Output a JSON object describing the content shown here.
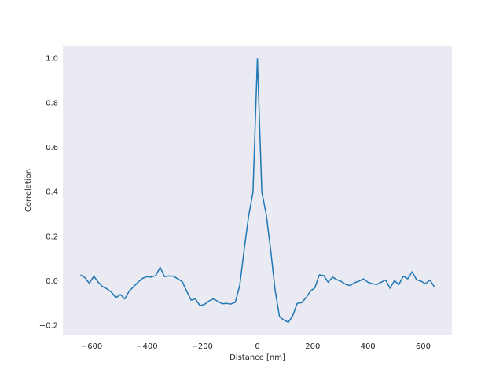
{
  "chart_data": {
    "type": "line",
    "xlabel": "Distance [nm]",
    "ylabel": "Correlation",
    "x": [
      -640,
      -624,
      -608,
      -592,
      -576,
      -560,
      -544,
      -528,
      -512,
      -496,
      -480,
      -464,
      -448,
      -432,
      -416,
      -400,
      -384,
      -368,
      -352,
      -336,
      -320,
      -304,
      -288,
      -272,
      -256,
      -240,
      -224,
      -208,
      -192,
      -176,
      -160,
      -144,
      -128,
      -112,
      -96,
      -80,
      -64,
      -48,
      -32,
      -16,
      0,
      16,
      32,
      48,
      64,
      80,
      96,
      112,
      128,
      144,
      160,
      176,
      192,
      208,
      224,
      240,
      256,
      272,
      288,
      304,
      320,
      336,
      352,
      368,
      384,
      400,
      416,
      432,
      448,
      464,
      480,
      496,
      512,
      528,
      544,
      560,
      576,
      592,
      608,
      624,
      640
    ],
    "values": [
      0.028,
      0.015,
      -0.01,
      0.022,
      -0.005,
      -0.025,
      -0.035,
      -0.05,
      -0.075,
      -0.06,
      -0.08,
      -0.045,
      -0.025,
      -0.005,
      0.012,
      0.02,
      0.018,
      0.025,
      0.062,
      0.02,
      0.023,
      0.022,
      0.01,
      -0.002,
      -0.045,
      -0.085,
      -0.08,
      -0.11,
      -0.105,
      -0.09,
      -0.08,
      -0.09,
      -0.102,
      -0.1,
      -0.103,
      -0.095,
      -0.02,
      0.14,
      0.29,
      0.4,
      1.0,
      0.4,
      0.3,
      0.14,
      -0.04,
      -0.16,
      -0.175,
      -0.185,
      -0.155,
      -0.1,
      -0.097,
      -0.075,
      -0.045,
      -0.03,
      0.028,
      0.025,
      -0.005,
      0.018,
      0.006,
      -0.002,
      -0.015,
      -0.02,
      -0.007,
      0,
      0.01,
      -0.005,
      -0.012,
      -0.015,
      -0.005,
      0.005,
      -0.032,
      0.002,
      -0.015,
      0.022,
      0.01,
      0.042,
      0.006,
      0,
      -0.012,
      0.005,
      -0.025
    ],
    "color": "#1f77b4",
    "background": "#eaeaf2",
    "grid": false,
    "xlim": [
      -704,
      704
    ],
    "xticks": [
      {
        "value": -600,
        "label": "−600"
      },
      {
        "value": -400,
        "label": "−400"
      },
      {
        "value": -200,
        "label": "−200"
      },
      0,
      200,
      400,
      600
    ],
    "ylim": [
      -0.244,
      1.059
    ],
    "yticks": [
      {
        "value": -0.2,
        "label": "−0.2"
      },
      {
        "value": 0,
        "label": "0.0"
      },
      0.2,
      0.4,
      0.6,
      0.8,
      {
        "value": 1,
        "label": "1.0"
      }
    ]
  }
}
